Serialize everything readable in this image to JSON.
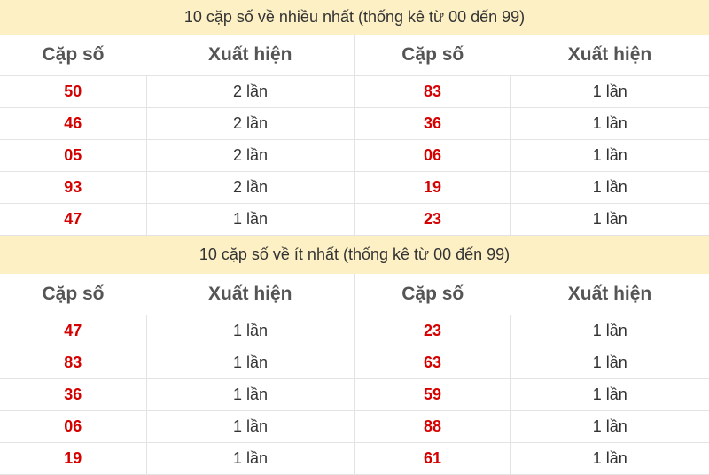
{
  "most": {
    "title": "10 cặp số về nhiều nhất (thống kê từ 00 đến 99)",
    "headers": [
      "Cặp số",
      "Xuất hiện",
      "Cặp số",
      "Xuất hiện"
    ],
    "rows": [
      [
        "50",
        "2 lần",
        "83",
        "1 lần"
      ],
      [
        "46",
        "2 lần",
        "36",
        "1 lần"
      ],
      [
        "05",
        "2 lần",
        "06",
        "1 lần"
      ],
      [
        "93",
        "2 lần",
        "19",
        "1 lần"
      ],
      [
        "47",
        "1 lần",
        "23",
        "1 lần"
      ]
    ]
  },
  "least": {
    "title": "10 cặp số về ít nhất (thống kê từ 00 đến 99)",
    "headers": [
      "Cặp số",
      "Xuất hiện",
      "Cặp số",
      "Xuất hiện"
    ],
    "rows": [
      [
        "47",
        "1 lần",
        "23",
        "1 lần"
      ],
      [
        "83",
        "1 lần",
        "63",
        "1 lần"
      ],
      [
        "36",
        "1 lần",
        "59",
        "1 lần"
      ],
      [
        "06",
        "1 lần",
        "88",
        "1 lần"
      ],
      [
        "19",
        "1 lần",
        "61",
        "1 lần"
      ]
    ]
  },
  "colors": {
    "number": "#d50000",
    "title_bg": "#fcf0c4"
  }
}
